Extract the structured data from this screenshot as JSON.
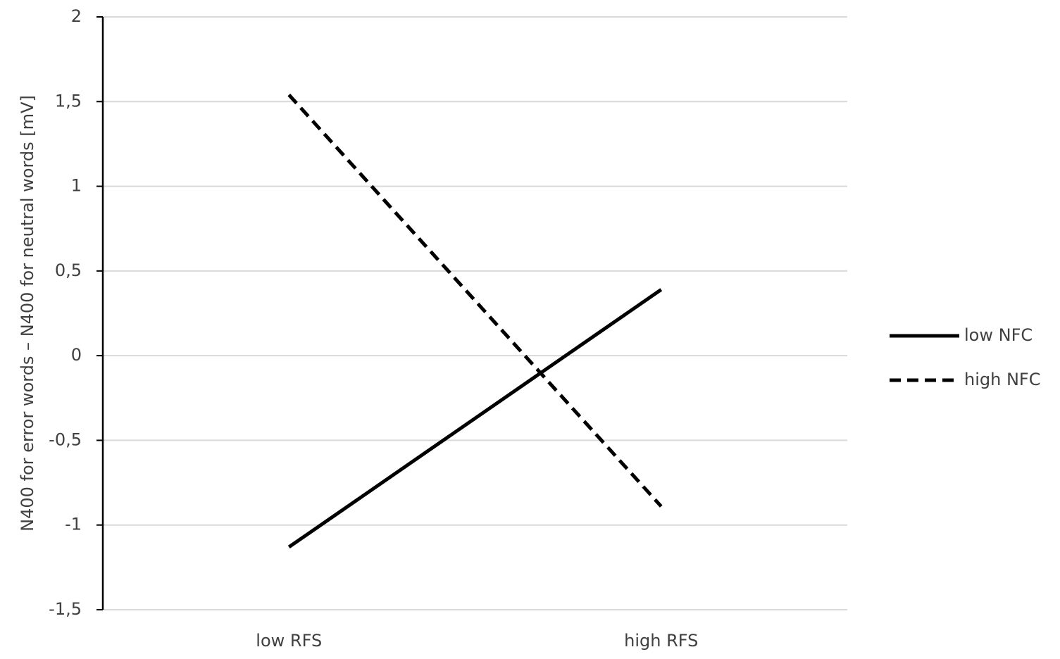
{
  "chart_data": {
    "type": "line",
    "y_label": "N400 for error words – N400 for neutral words [mV]",
    "categories": [
      "low RFS",
      "high RFS"
    ],
    "series": [
      {
        "name": "low NFC",
        "color": "#000000",
        "line_style": "solid",
        "values": [
          -1.13,
          0.39
        ]
      },
      {
        "name": "high NFC",
        "color": "#000000",
        "line_style": "dashed",
        "values": [
          1.54,
          -0.89
        ]
      }
    ],
    "ylim": [
      -1.5,
      2
    ],
    "yticks": [
      {
        "value": -1.5,
        "label": "-1,5"
      },
      -1,
      {
        "value": -0.5,
        "label": "-0,5"
      },
      0,
      {
        "value": 0.5,
        "label": "0,5"
      },
      1,
      {
        "value": 1.5,
        "label": "1,5"
      },
      2
    ],
    "grid": true,
    "legend": "right"
  }
}
